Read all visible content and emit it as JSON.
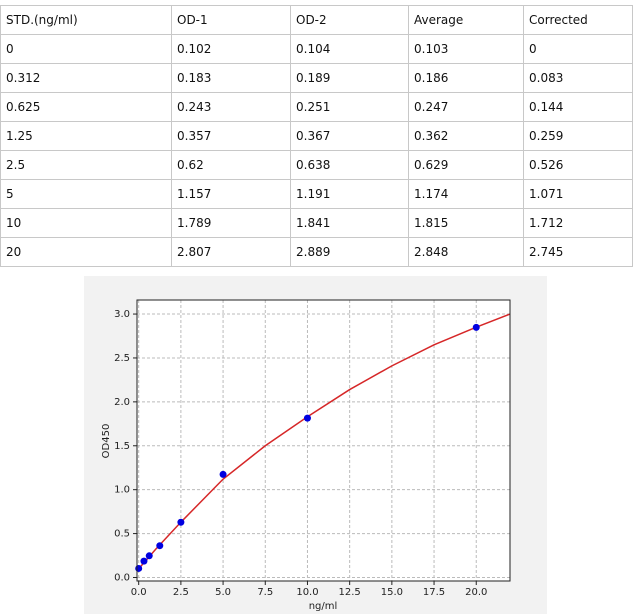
{
  "table": {
    "header": [
      "STD.(ng/ml)",
      "OD-1",
      "OD-2",
      "Average",
      "Corrected"
    ],
    "rows": [
      [
        "0",
        "0.102",
        "0.104",
        "0.103",
        "0"
      ],
      [
        "0.312",
        "0.183",
        "0.189",
        "0.186",
        "0.083"
      ],
      [
        "0.625",
        "0.243",
        "0.251",
        "0.247",
        "0.144"
      ],
      [
        "1.25",
        "0.357",
        "0.367",
        "0.362",
        "0.259"
      ],
      [
        "2.5",
        "0.62",
        "0.638",
        "0.629",
        "0.526"
      ],
      [
        "5",
        "1.157",
        "1.191",
        "1.174",
        "1.071"
      ],
      [
        "10",
        "1.789",
        "1.841",
        "1.815",
        "1.712"
      ],
      [
        "20",
        "2.807",
        "2.889",
        "2.848",
        "2.745"
      ]
    ]
  },
  "chart_data": {
    "type": "scatter",
    "x_label": "ng/ml",
    "y_label": "OD450",
    "xlim": [
      -0.1,
      22
    ],
    "ylim": [
      -0.04,
      3.16
    ],
    "xticks": [
      {
        "value": 0,
        "label": "0.0"
      },
      {
        "value": 2.5,
        "label": "2.5"
      },
      {
        "value": 5,
        "label": "5.0"
      },
      {
        "value": 7.5,
        "label": "7.5"
      },
      {
        "value": 10,
        "label": "10.0"
      },
      {
        "value": 12.5,
        "label": "12.5"
      },
      {
        "value": 15,
        "label": "15.0"
      },
      {
        "value": 17.5,
        "label": "17.5"
      },
      {
        "value": 20,
        "label": "20.0"
      }
    ],
    "yticks": [
      {
        "value": 0,
        "label": "0.0"
      },
      {
        "value": 0.5,
        "label": "0.5"
      },
      {
        "value": 1,
        "label": "1.0"
      },
      {
        "value": 1.5,
        "label": "1.5"
      },
      {
        "value": 2,
        "label": "2.0"
      },
      {
        "value": 2.5,
        "label": "2.5"
      },
      {
        "value": 3,
        "label": "3.0"
      }
    ],
    "grid": true,
    "series": [
      {
        "type": "scatter",
        "color": "#0000e0",
        "x": [
          0,
          0.312,
          0.625,
          1.25,
          2.5,
          5,
          10,
          20
        ],
        "values": [
          0.103,
          0.186,
          0.247,
          0.362,
          0.629,
          1.174,
          1.815,
          2.848
        ]
      },
      {
        "type": "line",
        "color": "#d62728",
        "x": [
          0,
          1,
          2.5,
          5,
          7.5,
          10,
          12.5,
          15,
          17.5,
          20,
          22
        ],
        "values": [
          0.1,
          0.32,
          0.63,
          1.12,
          1.5,
          1.83,
          2.14,
          2.41,
          2.65,
          2.85,
          3.0
        ]
      }
    ]
  }
}
